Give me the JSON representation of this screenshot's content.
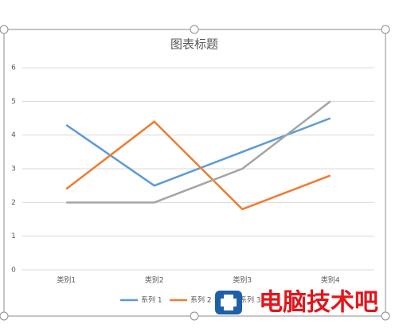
{
  "chart_data": {
    "type": "line",
    "title": "图表标题",
    "categories": [
      "类别1",
      "类别2",
      "类别3",
      "类别4"
    ],
    "series": [
      {
        "name": "系列 1",
        "color": "#5b9bd5",
        "values": [
          4.3,
          2.5,
          3.5,
          4.5
        ]
      },
      {
        "name": "系列 2",
        "color": "#ed7d31",
        "values": [
          2.4,
          4.4,
          1.8,
          2.8
        ]
      },
      {
        "name": "系列 3",
        "color": "#a5a5a5",
        "values": [
          2,
          2,
          3,
          5
        ]
      }
    ],
    "ylim": [
      0,
      6
    ],
    "yticks": [
      0,
      1,
      2,
      3,
      4,
      5,
      6
    ],
    "grid": true,
    "legend": "bottom",
    "annotation": "电脑技术吧"
  }
}
